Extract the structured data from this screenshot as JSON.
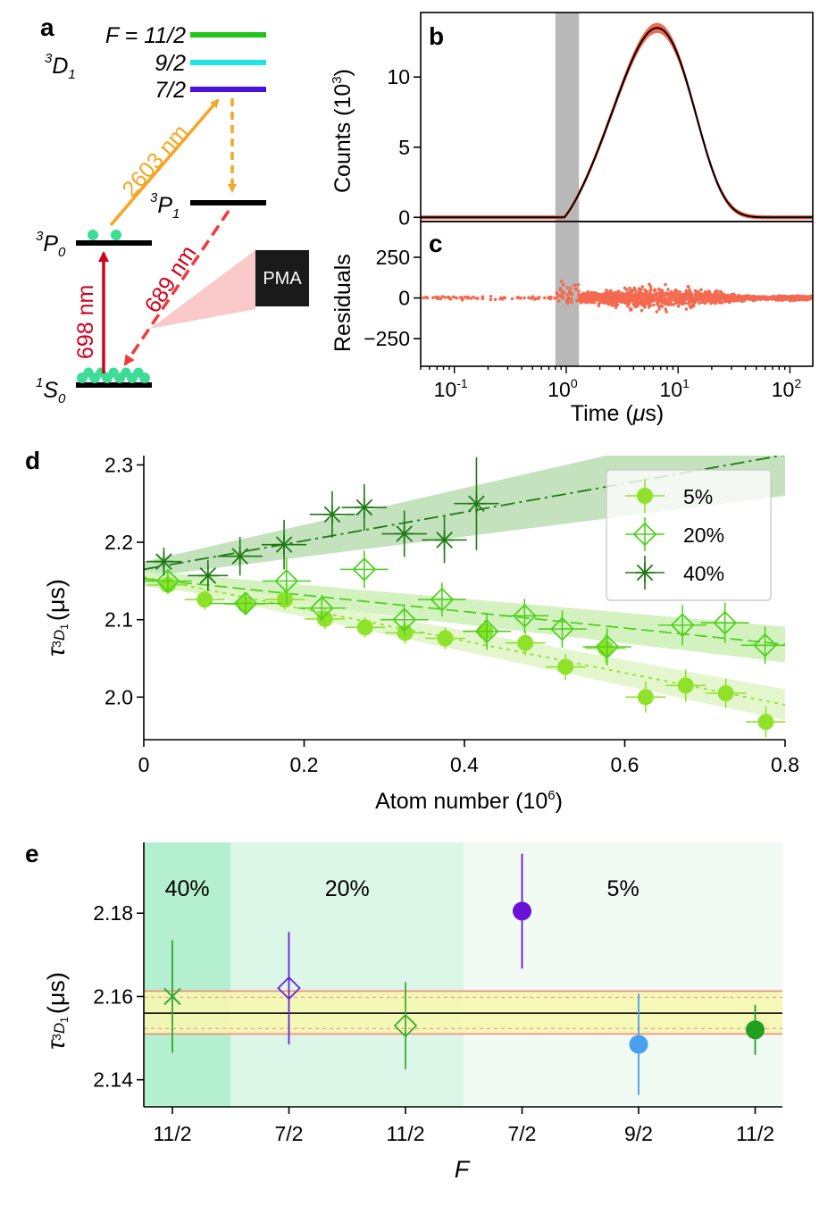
{
  "panel_labels": {
    "a": "a",
    "b": "b",
    "c": "c",
    "d": "d",
    "e": "e"
  },
  "panel_a": {
    "levels": {
      "f_prefix": "F = ",
      "f_11_2": "11/2",
      "f_9_2": "9/2",
      "f_7_2": "7/2",
      "d1_base": "3",
      "d1_letter": "D",
      "d1_sub": "1",
      "p1_base": "3",
      "p1_letter": "P",
      "p1_sub": "1",
      "p0_base": "3",
      "p0_letter": "P",
      "p0_sub": "0",
      "s0_base": "1",
      "s0_letter": "S",
      "s0_sub": "0"
    },
    "transitions": {
      "t2603": "2603 nm",
      "t689": "689 nm",
      "t698": "698 nm"
    },
    "detector": "PMA",
    "colors": {
      "f11": "#22c31a",
      "f9": "#22e6e6",
      "f7": "#4b10e0",
      "orange": "#f5a623",
      "red": "#d0021b",
      "red_dashed": "#f03a3a",
      "atom": "#3ddc97"
    }
  },
  "chart_data": [
    {
      "id": "b",
      "type": "line",
      "title": "",
      "ylabel": "Counts (10",
      "ylabel_sup": "3",
      "ylabel_close": ")",
      "xscale": "log",
      "xlim": [
        0.05,
        160
      ],
      "ylim": [
        -0.3,
        14.6
      ],
      "yticks": [
        0,
        5,
        10
      ],
      "ytick_labels": [
        "0",
        "5",
        "10"
      ],
      "shaded_x": [
        0.8,
        1.3
      ],
      "fit_peak": 13.5,
      "fit_peak_time": 6.5,
      "colors": {
        "data": "#f4694f",
        "fit": "#000000",
        "shade": "#b8b8b8"
      }
    },
    {
      "id": "c",
      "type": "scatter",
      "ylabel": "Residuals",
      "xlabel": "Time (",
      "xlabel_mu": "μ",
      "xlabel_end": "s)",
      "xscale": "log",
      "xlim": [
        0.05,
        160
      ],
      "ylim": [
        -420,
        470
      ],
      "yticks": [
        -250,
        0,
        250
      ],
      "ytick_labels": [
        "−250",
        "0",
        "250"
      ],
      "xtick_base": [
        "10",
        "10",
        "10"
      ],
      "xtick_exp": [
        "-1",
        "0",
        "1",
        "2"
      ],
      "xtick_values": [
        0.1,
        1,
        10,
        100
      ],
      "color": "#f4694f"
    },
    {
      "id": "d",
      "type": "scatter",
      "xlabel": "Atom number (10",
      "xlabel_sup": "6",
      "xlabel_close": ")",
      "ylabel_tau": "τ",
      "ylabel_unit": "(μs)",
      "ylabel_sub_base": "3",
      "ylabel_sub_letter": "D",
      "ylabel_sub_index": "1",
      "xlim": [
        0,
        0.8
      ],
      "ylim": [
        1.945,
        2.312
      ],
      "xticks": [
        0,
        0.2,
        0.4,
        0.6,
        0.8
      ],
      "xtick_labels": [
        "0",
        "0.2",
        "0.4",
        "0.6",
        "0.8"
      ],
      "yticks": [
        2.0,
        2.1,
        2.2,
        2.3
      ],
      "ytick_labels": [
        "2.0",
        "2.1",
        "2.2",
        "2.3"
      ],
      "legend": [
        "5%",
        "20%",
        "40%"
      ],
      "series": [
        {
          "name": "5%",
          "marker": "circle",
          "color": "#8ee22a",
          "points": [
            {
              "x": 0.03,
              "y": 2.145,
              "xe": 0.025,
              "ye": 0.012
            },
            {
              "x": 0.076,
              "y": 2.126,
              "xe": 0.025,
              "ye": 0.013
            },
            {
              "x": 0.126,
              "y": 2.12,
              "xe": 0.025,
              "ye": 0.013
            },
            {
              "x": 0.176,
              "y": 2.126,
              "xe": 0.025,
              "ye": 0.013
            },
            {
              "x": 0.226,
              "y": 2.101,
              "xe": 0.025,
              "ye": 0.013
            },
            {
              "x": 0.276,
              "y": 2.09,
              "xe": 0.025,
              "ye": 0.013
            },
            {
              "x": 0.326,
              "y": 2.083,
              "xe": 0.025,
              "ye": 0.014
            },
            {
              "x": 0.376,
              "y": 2.076,
              "xe": 0.025,
              "ye": 0.014
            },
            {
              "x": 0.426,
              "y": 2.085,
              "xe": 0.025,
              "ye": 0.015
            },
            {
              "x": 0.476,
              "y": 2.07,
              "xe": 0.025,
              "ye": 0.016
            },
            {
              "x": 0.526,
              "y": 2.039,
              "xe": 0.025,
              "ye": 0.017
            },
            {
              "x": 0.576,
              "y": 2.063,
              "xe": 0.025,
              "ye": 0.019
            },
            {
              "x": 0.626,
              "y": 2.0,
              "xe": 0.025,
              "ye": 0.02
            },
            {
              "x": 0.676,
              "y": 2.015,
              "xe": 0.025,
              "ye": 0.021
            },
            {
              "x": 0.726,
              "y": 2.005,
              "xe": 0.025,
              "ye": 0.019
            },
            {
              "x": 0.776,
              "y": 1.968,
              "xe": 0.025,
              "ye": 0.02
            }
          ],
          "fit": [
            [
              0,
              2.155
            ],
            [
              0.8,
              1.99
            ]
          ],
          "band": [
            [
              0,
              2.148,
              2.162
            ],
            [
              0.8,
              1.97,
              2.01
            ]
          ]
        },
        {
          "name": "20%",
          "marker": "diamond-cross",
          "color": "#4ed21e",
          "points": [
            {
              "x": 0.03,
              "y": 2.15,
              "xe": 0.03,
              "ye": 0.015
            },
            {
              "x": 0.127,
              "y": 2.121,
              "xe": 0.045,
              "ye": 0.015
            },
            {
              "x": 0.178,
              "y": 2.15,
              "xe": 0.03,
              "ye": 0.03
            },
            {
              "x": 0.222,
              "y": 2.115,
              "xe": 0.03,
              "ye": 0.017
            },
            {
              "x": 0.275,
              "y": 2.165,
              "xe": 0.03,
              "ye": 0.024
            },
            {
              "x": 0.325,
              "y": 2.1,
              "xe": 0.03,
              "ye": 0.02
            },
            {
              "x": 0.372,
              "y": 2.126,
              "xe": 0.03,
              "ye": 0.022
            },
            {
              "x": 0.428,
              "y": 2.085,
              "xe": 0.03,
              "ye": 0.024
            },
            {
              "x": 0.475,
              "y": 2.105,
              "xe": 0.03,
              "ye": 0.022
            },
            {
              "x": 0.522,
              "y": 2.088,
              "xe": 0.03,
              "ye": 0.024
            },
            {
              "x": 0.578,
              "y": 2.065,
              "xe": 0.03,
              "ye": 0.024
            },
            {
              "x": 0.672,
              "y": 2.093,
              "xe": 0.03,
              "ye": 0.026
            },
            {
              "x": 0.725,
              "y": 2.096,
              "xe": 0.03,
              "ye": 0.026
            },
            {
              "x": 0.775,
              "y": 2.067,
              "xe": 0.03,
              "ye": 0.024
            }
          ],
          "fit": [
            [
              0,
              2.153
            ],
            [
              0.8,
              2.068
            ]
          ],
          "band": [
            [
              0,
              2.143,
              2.163
            ],
            [
              0.8,
              2.045,
              2.091
            ]
          ]
        },
        {
          "name": "40%",
          "marker": "asterisk",
          "color": "#1f7a13",
          "points": [
            {
              "x": 0.025,
              "y": 2.175,
              "xe": 0.022,
              "ye": 0.018
            },
            {
              "x": 0.08,
              "y": 2.157,
              "xe": 0.025,
              "ye": 0.02
            },
            {
              "x": 0.12,
              "y": 2.182,
              "xe": 0.028,
              "ye": 0.025
            },
            {
              "x": 0.175,
              "y": 2.197,
              "xe": 0.028,
              "ye": 0.032
            },
            {
              "x": 0.235,
              "y": 2.236,
              "xe": 0.028,
              "ye": 0.03
            },
            {
              "x": 0.275,
              "y": 2.245,
              "xe": 0.028,
              "ye": 0.03
            },
            {
              "x": 0.325,
              "y": 2.211,
              "xe": 0.028,
              "ye": 0.03
            },
            {
              "x": 0.375,
              "y": 2.203,
              "xe": 0.028,
              "ye": 0.03
            },
            {
              "x": 0.415,
              "y": 2.25,
              "xe": 0.028,
              "ye": 0.06
            }
          ],
          "fit": [
            [
              0,
              2.165
            ],
            [
              0.8,
              2.313
            ]
          ],
          "band": [
            [
              0,
              2.155,
              2.175
            ],
            [
              0.8,
              2.26,
              2.365
            ]
          ]
        }
      ]
    },
    {
      "id": "e",
      "type": "scatter",
      "xlabel": "F",
      "ylabel_tau": "τ",
      "ylabel_unit": "(μs)",
      "ylabel_sub_base": "3",
      "ylabel_sub_letter": "D",
      "ylabel_sub_index": "1",
      "categories": [
        "11/2",
        "7/2",
        "11/2",
        "7/2",
        "9/2",
        "11/2"
      ],
      "ylim": [
        2.1335,
        2.197
      ],
      "yticks": [
        2.14,
        2.16,
        2.18
      ],
      "ytick_labels": [
        "2.14",
        "2.16",
        "2.18"
      ],
      "regions": [
        {
          "label": "40%",
          "from": 0,
          "to": 1,
          "color": "#b4f0d0"
        },
        {
          "label": "20%",
          "from": 1,
          "to": 3,
          "color": "#dcf7e8"
        },
        {
          "label": "5%",
          "from": 3,
          "to": 6,
          "color": "#f1fbf4"
        }
      ],
      "mean": 2.156,
      "mean_band": [
        2.151,
        2.1613
      ],
      "mean_inner": [
        2.1523,
        2.1598
      ],
      "points": [
        {
          "i": 0,
          "y": 2.16,
          "ye": 0.0135,
          "marker": "x",
          "color": "#2ea62e"
        },
        {
          "i": 1,
          "y": 2.162,
          "ye": 0.0135,
          "marker": "diamond",
          "color": "#6a22d6"
        },
        {
          "i": 2,
          "y": 2.153,
          "ye": 0.0105,
          "marker": "diamond",
          "color": "#38b02a"
        },
        {
          "i": 3,
          "y": 2.1805,
          "ye": 0.0138,
          "marker": "circle",
          "color": "#6a12d8"
        },
        {
          "i": 4,
          "y": 2.1485,
          "ye": 0.0122,
          "marker": "circle",
          "color": "#4aa0f0"
        },
        {
          "i": 5,
          "y": 2.152,
          "ye": 0.006,
          "marker": "circle",
          "color": "#20a020"
        }
      ]
    }
  ]
}
